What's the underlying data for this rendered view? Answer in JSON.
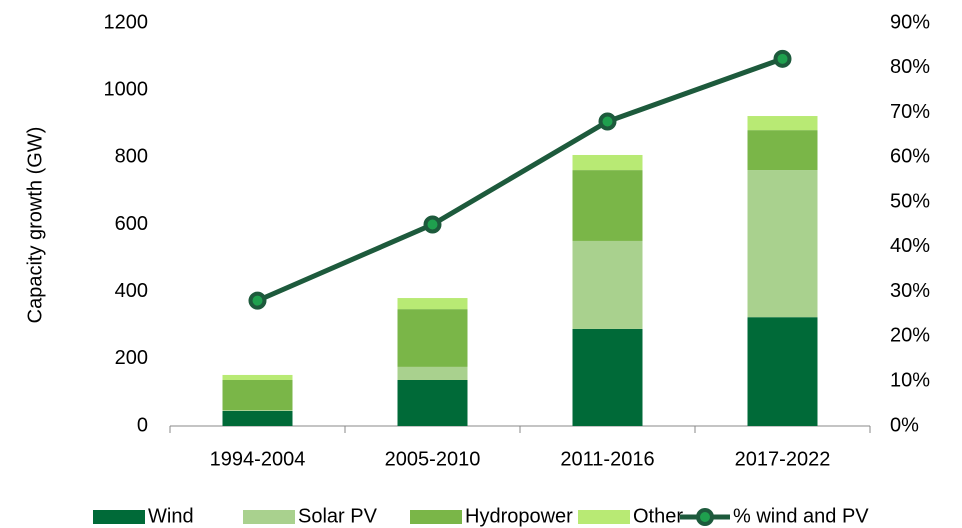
{
  "chart_data": {
    "type": "bar",
    "stacked": true,
    "y_label": "Capacity growth (GW)",
    "categories": [
      "1994-2004",
      "2005-2010",
      "2011-2016",
      "2017-2022"
    ],
    "series": [
      {
        "name": "Wind",
        "color": "#006a38",
        "values": [
          45,
          137,
          289,
          324
        ]
      },
      {
        "name": "Solar PV",
        "color": "#a9d18e",
        "values": [
          2,
          39,
          262,
          438
        ]
      },
      {
        "name": "Hydropower",
        "color": "#7ab648",
        "values": [
          90,
          172,
          211,
          119
        ]
      },
      {
        "name": "Other",
        "color": "#b8ea74",
        "values": [
          15,
          33,
          45,
          42
        ]
      },
      {
        "name": "% wind and PV",
        "type": "line",
        "axis": "y2",
        "color": "#1d5a3c",
        "marker_color": "#1fa04e",
        "values": [
          28,
          45,
          68,
          82
        ]
      }
    ],
    "ylim": [
      0,
      1200
    ],
    "yticks": [
      0,
      200,
      400,
      600,
      800,
      1000,
      1200
    ],
    "y2lim": [
      0,
      90
    ],
    "y2ticks": [
      {
        "value": 0,
        "label": "0%"
      },
      {
        "value": 10,
        "label": "10%"
      },
      {
        "value": 20,
        "label": "20%"
      },
      {
        "value": 30,
        "label": "30%"
      },
      {
        "value": 40,
        "label": "40%"
      },
      {
        "value": 50,
        "label": "50%"
      },
      {
        "value": 60,
        "label": "60%"
      },
      {
        "value": 70,
        "label": "70%"
      },
      {
        "value": 80,
        "label": "80%"
      },
      {
        "value": 90,
        "label": "90%"
      }
    ],
    "grid": false,
    "legend": "bottom"
  }
}
